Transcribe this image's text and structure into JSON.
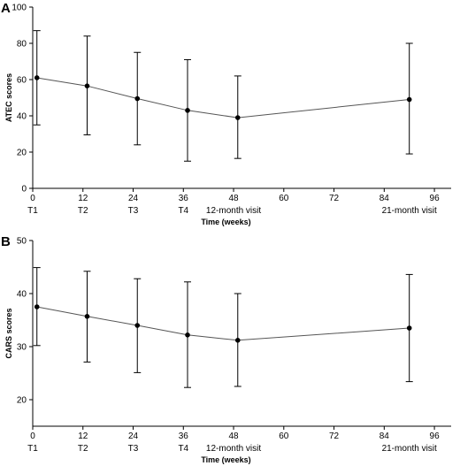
{
  "chart_data": [
    {
      "panel_label": "A",
      "type": "line",
      "title": "",
      "xlabel": "Time (weeks)",
      "ylabel": "ATEC scores",
      "xlim": [
        0,
        100
      ],
      "ylim": [
        0,
        100
      ],
      "x_ticks": [
        0,
        12,
        24,
        36,
        48,
        60,
        72,
        84,
        96
      ],
      "y_ticks": [
        0,
        20,
        40,
        60,
        80,
        100
      ],
      "timepoint_labels": [
        {
          "x": 0,
          "label": "T1"
        },
        {
          "x": 12,
          "label": "T2"
        },
        {
          "x": 24,
          "label": "T3"
        },
        {
          "x": 36,
          "label": "T4"
        },
        {
          "x": 48,
          "label": "12-month visit"
        },
        {
          "x": 90,
          "label": "21-month visit"
        }
      ],
      "series": [
        {
          "x": [
            1,
            13,
            25,
            37,
            49,
            90
          ],
          "values": [
            61,
            56.5,
            49.5,
            43,
            39,
            49
          ],
          "error_low": [
            35,
            29.5,
            24,
            15,
            16.5,
            19
          ],
          "error_high": [
            87,
            84,
            75,
            71,
            62,
            80
          ]
        }
      ],
      "grid": false,
      "legend": "none"
    },
    {
      "panel_label": "B",
      "type": "line",
      "title": "",
      "xlabel": "Time (weeks)",
      "ylabel": "CARS scores",
      "xlim": [
        0,
        100
      ],
      "ylim": [
        15,
        50
      ],
      "x_ticks": [
        0,
        12,
        24,
        36,
        48,
        60,
        72,
        84,
        96
      ],
      "y_ticks": [
        20,
        30,
        40,
        50
      ],
      "timepoint_labels": [
        {
          "x": 0,
          "label": "T1"
        },
        {
          "x": 12,
          "label": "T2"
        },
        {
          "x": 24,
          "label": "T3"
        },
        {
          "x": 36,
          "label": "T4"
        },
        {
          "x": 48,
          "label": "12-month visit"
        },
        {
          "x": 90,
          "label": "21-month visit"
        }
      ],
      "series": [
        {
          "x": [
            1,
            13,
            25,
            37,
            49,
            90
          ],
          "values": [
            37.5,
            35.7,
            34,
            32.2,
            31.2,
            33.5
          ],
          "error_low": [
            30.2,
            27.1,
            25.1,
            22.3,
            22.5,
            23.4
          ],
          "error_high": [
            44.9,
            44.2,
            42.8,
            42.2,
            40,
            43.6
          ]
        }
      ],
      "grid": false,
      "legend": "none"
    }
  ]
}
